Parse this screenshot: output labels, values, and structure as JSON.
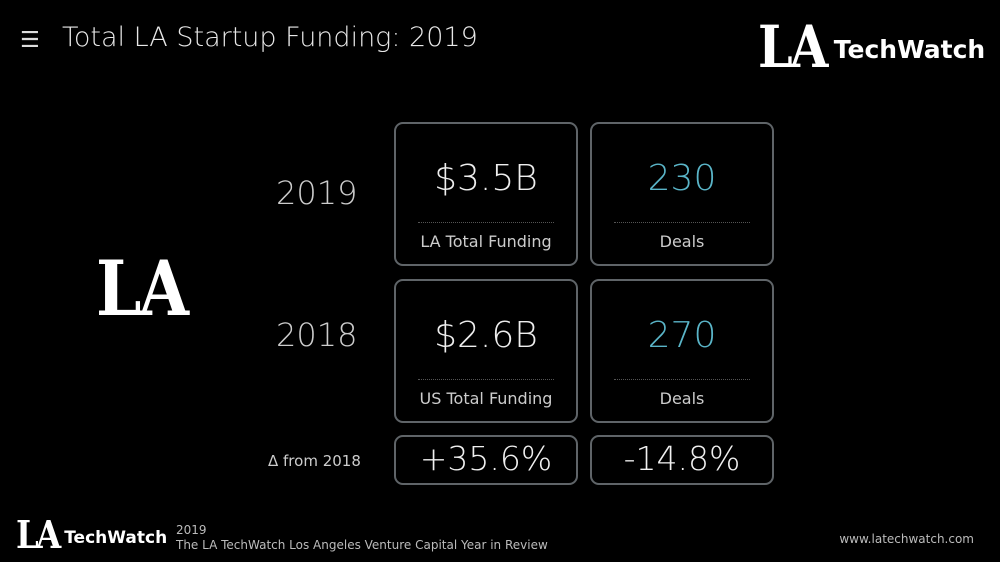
{
  "header": {
    "menu_icon": "hamburger-icon",
    "title": "Total LA Startup Funding: 2019",
    "logo_la": "LA",
    "logo_techwatch": "TechWatch"
  },
  "side_logo": "LA",
  "rows": [
    {
      "year": "2019",
      "funding": "$3.5B",
      "funding_label": "LA Total Funding",
      "deals": "230",
      "deals_label": "Deals"
    },
    {
      "year": "2018",
      "funding": "$2.6B",
      "funding_label": "US Total Funding",
      "deals": "270",
      "deals_label": "Deals"
    }
  ],
  "delta": {
    "label": "Δ from 2018",
    "funding": "+35.6%",
    "deals": "-14.8%"
  },
  "footer": {
    "logo_la": "LA",
    "logo_techwatch": "TechWatch",
    "year": "2019",
    "subtitle": "The LA TechWatch Los Angeles Venture Capital Year in Review",
    "url": "www.latechwatch.com"
  },
  "colors": {
    "accent": "#5ab5c8",
    "border": "#5f6468"
  }
}
